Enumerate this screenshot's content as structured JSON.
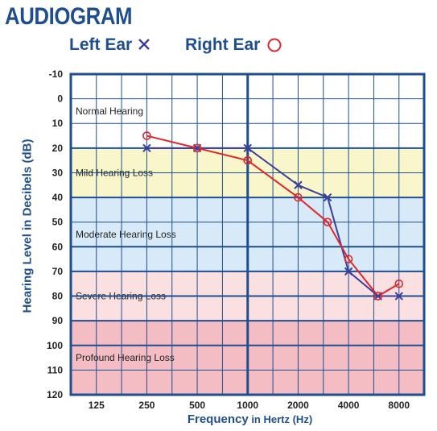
{
  "title": "AUDIOGRAM",
  "legend": {
    "left_label": "Left Ear",
    "right_label": "Right Ear",
    "left_symbol": "x-mark-icon",
    "right_symbol": "circle-icon"
  },
  "axes": {
    "ylabel": "Hearing Level in Decibels (dB)",
    "xlabel_main": "Frequency",
    "xlabel_sub": " in Hertz (Hz)"
  },
  "colors": {
    "accent": "#1f4e8f",
    "left_ear": "#3b3e9a",
    "right_ear": "#e0262b",
    "band_normal": "#ffffff",
    "band_mild": "#f9f6cc",
    "band_moderate": "#d8eaf7",
    "band_severe": "#fbe0e2",
    "band_profound": "#f4bcc3"
  },
  "chart_data": {
    "type": "line",
    "title": "AUDIOGRAM",
    "xlabel": "Frequency in Hertz (Hz)",
    "ylabel": "Hearing Level in Decibels (dB)",
    "x_scale": "log2",
    "x_tick_labels": [
      "125",
      "250",
      "500",
      "1000",
      "2000",
      "4000",
      "8000"
    ],
    "x_ticks": [
      125,
      250,
      500,
      1000,
      2000,
      4000,
      8000
    ],
    "xlim": [
      88,
      11300
    ],
    "y_inverted": true,
    "ylim": [
      -10,
      120
    ],
    "y_ticks": [
      -10,
      0,
      10,
      20,
      30,
      40,
      50,
      60,
      70,
      80,
      90,
      100,
      110,
      120
    ],
    "grid": true,
    "bands": [
      {
        "label": "Normal Hearing",
        "from": -10,
        "to": 20,
        "color": "#ffffff"
      },
      {
        "label": "Mild Hearing Loss",
        "from": 20,
        "to": 40,
        "color": "#f9f6cc"
      },
      {
        "label": "Moderate Hearing Loss",
        "from": 40,
        "to": 70,
        "color": "#d8eaf7"
      },
      {
        "label": "Severe Hearing Loss",
        "from": 70,
        "to": 90,
        "color": "#fbe0e2"
      },
      {
        "label": "Profound Hearing Loss",
        "from": 90,
        "to": 120,
        "color": "#f4bcc3"
      }
    ],
    "series": [
      {
        "name": "Left Ear",
        "marker": "x",
        "color": "#3b3e9a",
        "x": [
          250,
          500,
          1000,
          2000,
          3000,
          4000,
          6000,
          8000
        ],
        "y": [
          20,
          20,
          20,
          35,
          40,
          70,
          80,
          80
        ]
      },
      {
        "name": "Right Ear",
        "marker": "o",
        "color": "#e0262b",
        "x": [
          250,
          500,
          1000,
          2000,
          3000,
          4000,
          6000,
          8000
        ],
        "y": [
          15,
          20,
          25,
          40,
          50,
          65,
          80,
          75
        ]
      }
    ]
  }
}
